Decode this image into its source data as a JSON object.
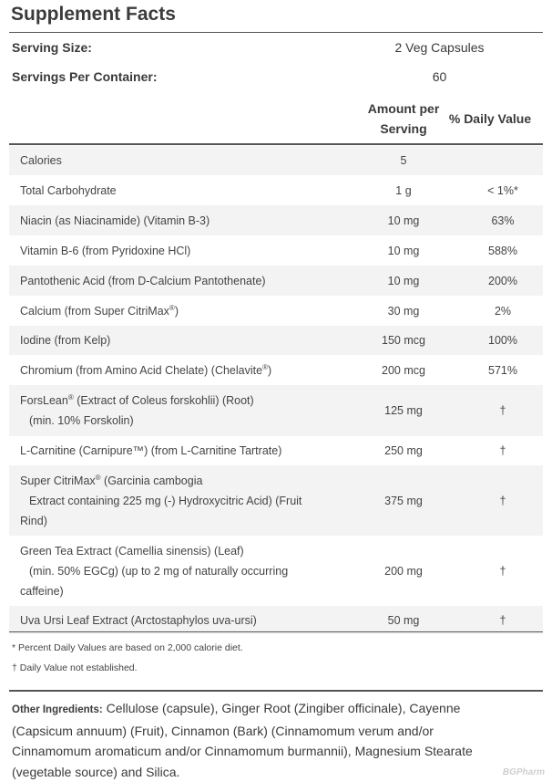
{
  "title": "Supplement Facts",
  "serving_size": {
    "label": "Serving Size:",
    "value": "2 Veg Capsules"
  },
  "servings_per_container": {
    "label": "Servings Per Container:",
    "value": "60"
  },
  "headers": {
    "amount_line1": "Amount per",
    "amount_line2": "Serving",
    "dv": "% Daily Value"
  },
  "rows": [
    {
      "name": "Calories",
      "amount": "5",
      "dv": ""
    },
    {
      "name": "Total Carbohydrate",
      "amount": "1 g",
      "dv": "< 1%*"
    },
    {
      "name": "Niacin (as Niacinamide) (Vitamin B-3)",
      "amount": "10 mg",
      "dv": "63%"
    },
    {
      "name": "Vitamin B-6 (from Pyridoxine HCl)",
      "amount": "10 mg",
      "dv": "588%"
    },
    {
      "name": "Pantothenic Acid (from D-Calcium Pantothenate)",
      "amount": "10 mg",
      "dv": "200%"
    },
    {
      "name": "Calcium (from Super CitriMax",
      "reg": "®",
      "tail": ")",
      "amount": "30 mg",
      "dv": "2%"
    },
    {
      "name": "Iodine (from Kelp)",
      "amount": "150 mcg",
      "dv": "100%"
    },
    {
      "name": "Chromium (from Amino Acid Chelate) (Chelavite",
      "reg": "®",
      "tail": ")",
      "amount": "200 mcg",
      "dv": "571%"
    },
    {
      "name": "ForsLean",
      "reg": "®",
      "tail": " (Extract of Coleus forskohlii) (Root)",
      "sub": "(min. 10% Forskolin)",
      "amount": "125 mg",
      "dv": "†"
    },
    {
      "name": "L-Carnitine (Carnipure™) (from L-Carnitine Tartrate)",
      "amount": "250 mg",
      "dv": "†"
    },
    {
      "name": "Super CitriMax",
      "reg": "®",
      "tail": " (Garcinia cambogia",
      "sub": "Extract containing 225 mg (-) Hydroxycitric Acid) (Fruit",
      "sub2": "Rind)",
      "amount": "375 mg",
      "dv": "†"
    },
    {
      "name": "Green Tea Extract (Camellia sinensis) (Leaf)",
      "sub": "(min. 50% EGCg) (up to 2 mg of naturally occurring",
      "sub2": "caffeine)",
      "amount": "200 mg",
      "dv": "†"
    },
    {
      "name": "Uva Ursi Leaf Extract (Arctostaphylos uva-ursi)",
      "amount": "50 mg",
      "dv": "†"
    }
  ],
  "notes": {
    "dv_note": "* Percent Daily Values are based on 2,000 calorie diet.",
    "dagger_note": "† Daily Value not established."
  },
  "other_ingredients": {
    "label": "Other Ingredients:",
    "text": " Cellulose (capsule), Ginger Root (Zingiber officinale), Cayenne (Capsicum annuum) (Fruit), Cinnamon (Bark) (Cinnamomum verum and/or Cinnamomum aromaticum and/or Cinnamomum burmannii), Magnesium Stearate (vegetable source) and Silica."
  },
  "watermark": "BGPharm"
}
